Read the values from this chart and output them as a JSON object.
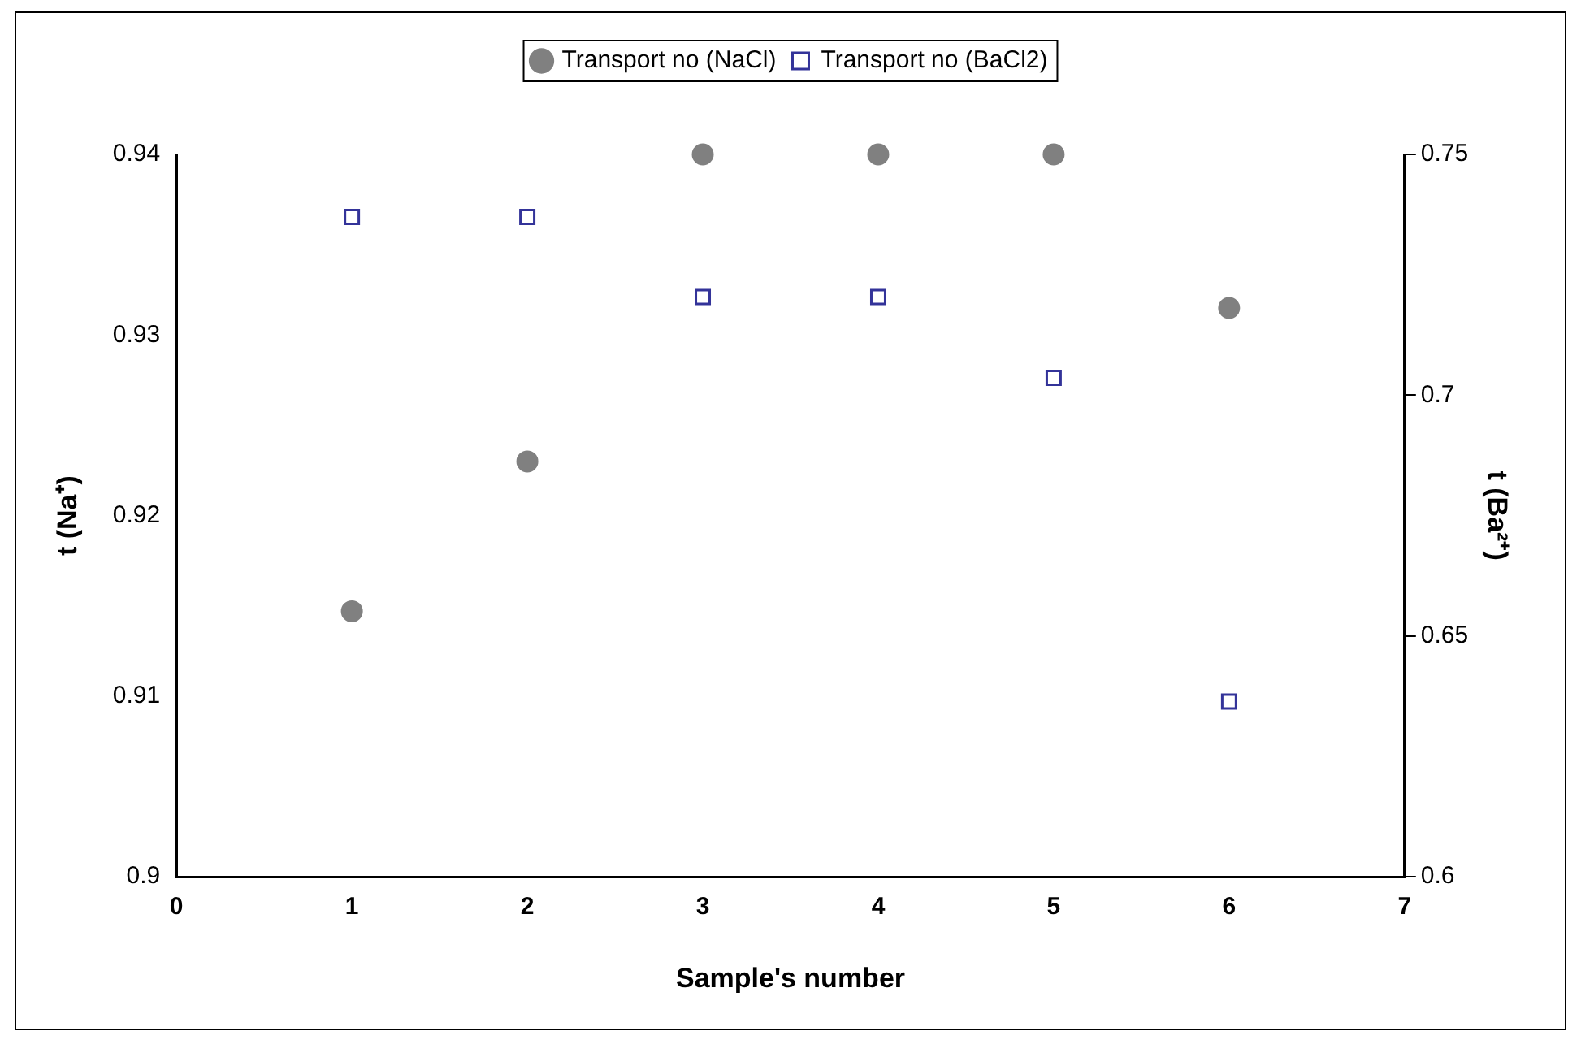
{
  "chart_data": {
    "type": "scatter",
    "xlabel": "Sample's number",
    "ylabel": "t (Na⁺)",
    "y2label": "t (Ba²⁺)",
    "x": [
      1,
      2,
      3,
      4,
      5,
      6
    ],
    "series": [
      {
        "name": "Transport no (NaCl)",
        "color": "#808080",
        "marker": "circle",
        "values": [
          0.9147,
          0.923,
          0.94,
          0.94,
          0.94,
          0.9315
        ]
      },
      {
        "name": "Transport no (BaCl2)",
        "color": "#333399",
        "marker": "square",
        "axis": "y2",
        "values": [
          0.737,
          0.737,
          0.7204,
          0.7204,
          0.7036,
          0.6364
        ]
      }
    ],
    "xlim": [
      0,
      7
    ],
    "xticks": [
      0,
      1,
      2,
      3,
      4,
      5,
      6,
      7
    ],
    "ylim": [
      0.9,
      0.94
    ],
    "yticks": [
      0.9,
      0.91,
      0.92,
      0.93,
      0.94
    ],
    "y2lim": [
      0.6,
      0.75
    ],
    "y2ticks": [
      0.6,
      0.65,
      0.7,
      0.75
    ],
    "grid": false,
    "legend": "top"
  }
}
